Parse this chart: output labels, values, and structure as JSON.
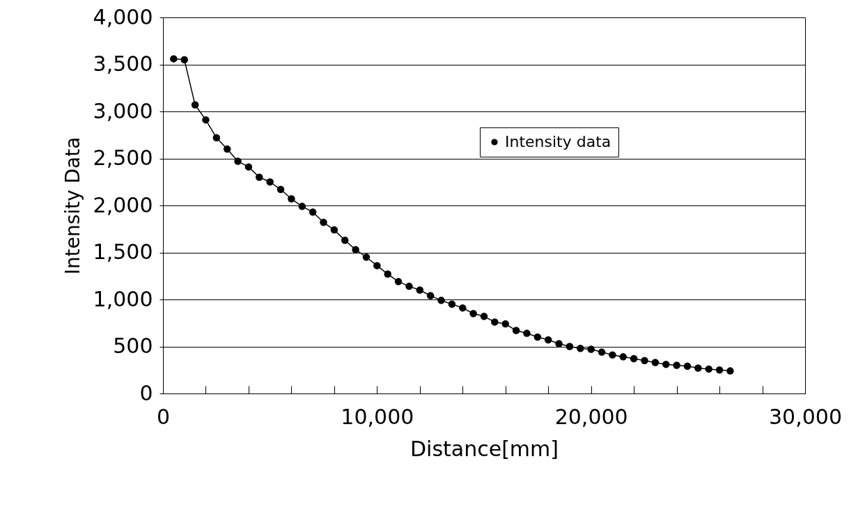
{
  "chart_data": {
    "type": "line",
    "xlabel": "Distance[mm]",
    "ylabel": "Intensity Data",
    "series": [
      {
        "name": "Intensity data",
        "color": "#000000",
        "x": [
          500,
          1000,
          1500,
          2000,
          2500,
          3000,
          3500,
          4000,
          4500,
          5000,
          5500,
          6000,
          6500,
          7000,
          7500,
          8000,
          8500,
          9000,
          9500,
          10000,
          10500,
          11000,
          11500,
          12000,
          12500,
          13000,
          13500,
          14000,
          14500,
          15000,
          15500,
          16000,
          16500,
          17000,
          17500,
          18000,
          18500,
          19000,
          19500,
          20000,
          20500,
          21000,
          21500,
          22000,
          22500,
          23000,
          23500,
          24000,
          24500,
          25000,
          25500,
          26000,
          26500
        ],
        "values": [
          3560,
          3550,
          3070,
          2910,
          2720,
          2600,
          2470,
          2410,
          2300,
          2250,
          2170,
          2070,
          1990,
          1930,
          1820,
          1740,
          1630,
          1530,
          1450,
          1360,
          1270,
          1190,
          1140,
          1100,
          1040,
          990,
          950,
          910,
          850,
          820,
          760,
          740,
          670,
          640,
          600,
          570,
          530,
          500,
          480,
          470,
          440,
          410,
          390,
          370,
          350,
          330,
          310,
          300,
          290,
          270,
          260,
          250,
          240
        ]
      }
    ],
    "xlim": [
      0,
      30000
    ],
    "xticks": [
      0,
      {
        "value": 2000,
        "label": null
      },
      {
        "value": 4000,
        "label": null
      },
      {
        "value": 6000,
        "label": null
      },
      {
        "value": 8000,
        "label": null
      },
      {
        "value": 10000,
        "label": "10,000"
      },
      {
        "value": 12000,
        "label": null
      },
      {
        "value": 14000,
        "label": null
      },
      {
        "value": 16000,
        "label": null
      },
      {
        "value": 18000,
        "label": null
      },
      {
        "value": 20000,
        "label": "20,000"
      },
      {
        "value": 22000,
        "label": null
      },
      {
        "value": 24000,
        "label": null
      },
      {
        "value": 26000,
        "label": null
      },
      {
        "value": 28000,
        "label": null
      },
      {
        "value": 30000,
        "label": "30,000"
      }
    ],
    "ylim": [
      0,
      4000
    ],
    "yticks": [
      0,
      {
        "value": 500,
        "label": "500"
      },
      {
        "value": 1000,
        "label": "1,000"
      },
      {
        "value": 1500,
        "label": "1,500"
      },
      {
        "value": 2000,
        "label": "2,000"
      },
      {
        "value": 2500,
        "label": "2,500"
      },
      {
        "value": 3000,
        "label": "3,000"
      },
      {
        "value": 3500,
        "label": "3,500"
      },
      {
        "value": 4000,
        "label": "4,000"
      }
    ],
    "grid": "y",
    "legend": "top right",
    "marker": "circle",
    "line_style": "solid"
  }
}
